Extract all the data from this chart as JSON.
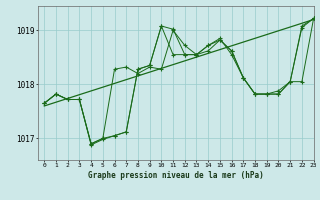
{
  "title": "Graphe pression niveau de la mer (hPa)",
  "background_color": "#cde8e8",
  "grid_color": "#99cccc",
  "line_color": "#1a6b1a",
  "xlim": [
    -0.5,
    23
  ],
  "ylim": [
    1016.6,
    1019.45
  ],
  "yticks": [
    1017,
    1018,
    1019
  ],
  "xticks": [
    0,
    1,
    2,
    3,
    4,
    5,
    6,
    7,
    8,
    9,
    10,
    11,
    12,
    13,
    14,
    15,
    16,
    17,
    18,
    19,
    20,
    21,
    22,
    23
  ],
  "series1_x": [
    0,
    23
  ],
  "series1_y": [
    1017.6,
    1019.2
  ],
  "series2": [
    1017.65,
    1017.82,
    1017.72,
    1017.72,
    1016.88,
    1016.98,
    1017.05,
    1017.12,
    1018.28,
    1018.35,
    1019.08,
    1019.02,
    1018.55,
    1018.55,
    1018.72,
    1018.82,
    1018.62,
    1018.12,
    1017.82,
    1017.82,
    1017.82,
    1018.05,
    1019.08,
    1019.22
  ],
  "series3": [
    1017.65,
    1017.82,
    1017.72,
    1017.72,
    1016.9,
    1017.0,
    1018.28,
    1018.32,
    1018.2,
    1018.32,
    1018.28,
    1019.0,
    1018.72,
    1018.55,
    1018.72,
    1018.85,
    1018.55,
    1018.12,
    1017.82,
    1017.82,
    1017.88,
    1018.05,
    1019.05,
    1019.22
  ],
  "series4": [
    1017.65,
    1017.82,
    1017.72,
    1017.72,
    1016.9,
    1017.0,
    1017.05,
    1017.12,
    1018.28,
    1018.35,
    1019.08,
    1018.55,
    1018.55,
    1018.55,
    1018.62,
    1018.82,
    1018.62,
    1018.12,
    1017.82,
    1017.82,
    1017.82,
    1018.05,
    1018.05,
    1019.22
  ]
}
